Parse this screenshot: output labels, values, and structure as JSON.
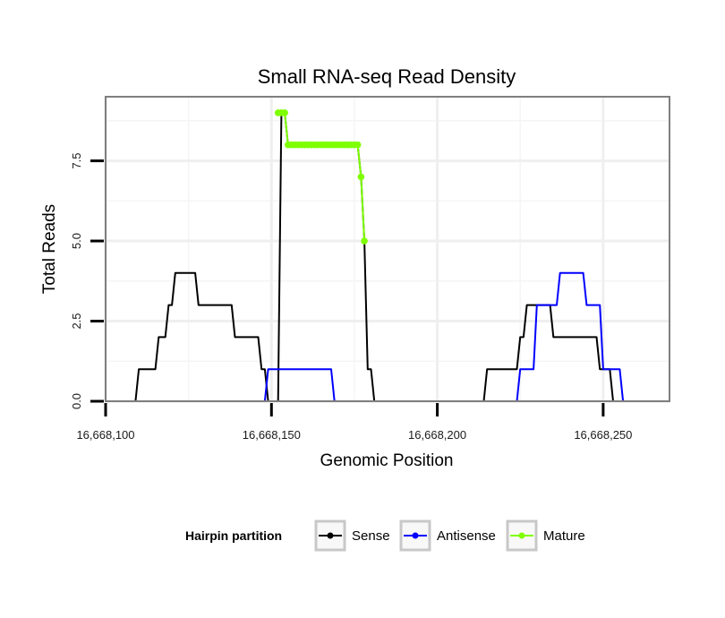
{
  "chart_data": {
    "type": "line",
    "title": "Small RNA-seq Read Density",
    "xlabel": "Genomic Position",
    "ylabel": "Total Reads",
    "xlim": [
      16668100,
      16668270
    ],
    "ylim": [
      0,
      9.5
    ],
    "x_ticks": [
      16668100,
      16668150,
      16668200,
      16668250
    ],
    "x_tick_labels": [
      "16,668,100",
      "16,668,150",
      "16,668,200",
      "16,668,250"
    ],
    "y_ticks": [
      0,
      2.5,
      5.0,
      7.5
    ],
    "y_tick_labels": [
      "0.0",
      "2.5",
      "5.0",
      "7.5"
    ],
    "grid": true,
    "legend": {
      "title": "Hairpin partition",
      "placement": "bottom",
      "entries": [
        "Sense",
        "Antisense",
        "Mature"
      ]
    },
    "series": [
      {
        "name": "Sense",
        "color": "#000000",
        "points": [
          [
            16668104,
            0
          ],
          [
            16668109,
            0
          ],
          [
            16668110,
            1
          ],
          [
            16668115,
            1
          ],
          [
            16668116,
            2
          ],
          [
            16668118,
            2
          ],
          [
            16668119,
            3
          ],
          [
            16668120,
            3
          ],
          [
            16668121,
            4
          ],
          [
            16668127,
            4
          ],
          [
            16668128,
            3
          ],
          [
            16668138,
            3
          ],
          [
            16668139,
            2
          ],
          [
            16668146,
            2
          ],
          [
            16668147,
            1
          ],
          [
            16668148,
            1
          ],
          [
            16668149,
            0
          ],
          [
            16668152,
            0
          ],
          [
            16668153,
            9
          ],
          [
            16668154,
            9
          ],
          [
            16668155,
            8
          ],
          [
            16668176,
            8
          ],
          [
            16668177,
            7
          ],
          [
            16668178,
            5
          ],
          [
            16668179,
            1
          ],
          [
            16668180,
            1
          ],
          [
            16668181,
            0
          ],
          [
            16668214,
            0
          ],
          [
            16668215,
            1
          ],
          [
            16668224,
            1
          ],
          [
            16668225,
            2
          ],
          [
            16668226,
            2
          ],
          [
            16668227,
            3
          ],
          [
            16668234,
            3
          ],
          [
            16668235,
            2
          ],
          [
            16668248,
            2
          ],
          [
            16668249,
            1
          ],
          [
            16668252,
            1
          ],
          [
            16668253,
            0
          ],
          [
            16668259,
            0
          ]
        ]
      },
      {
        "name": "Antisense",
        "color": "#0000ff",
        "points": [
          [
            16668109,
            0
          ],
          [
            16668148,
            0
          ],
          [
            16668149,
            1
          ],
          [
            16668168,
            1
          ],
          [
            16668169,
            0
          ],
          [
            16668224,
            0
          ],
          [
            16668225,
            1
          ],
          [
            16668229,
            1
          ],
          [
            16668230,
            3
          ],
          [
            16668236,
            3
          ],
          [
            16668237,
            4
          ],
          [
            16668244,
            4
          ],
          [
            16668245,
            3
          ],
          [
            16668249,
            3
          ],
          [
            16668250,
            1
          ],
          [
            16668255,
            1
          ],
          [
            16668256,
            0
          ]
        ]
      },
      {
        "name": "Mature",
        "color": "#7fff00",
        "points": [
          [
            16668152,
            9
          ],
          [
            16668153,
            9
          ],
          [
            16668154,
            9
          ],
          [
            16668155,
            8
          ],
          [
            16668156,
            8
          ],
          [
            16668157,
            8
          ],
          [
            16668158,
            8
          ],
          [
            16668159,
            8
          ],
          [
            16668160,
            8
          ],
          [
            16668161,
            8
          ],
          [
            16668162,
            8
          ],
          [
            16668163,
            8
          ],
          [
            16668164,
            8
          ],
          [
            16668165,
            8
          ],
          [
            16668166,
            8
          ],
          [
            16668167,
            8
          ],
          [
            16668168,
            8
          ],
          [
            16668169,
            8
          ],
          [
            16668170,
            8
          ],
          [
            16668171,
            8
          ],
          [
            16668172,
            8
          ],
          [
            16668173,
            8
          ],
          [
            16668174,
            8
          ],
          [
            16668175,
            8
          ],
          [
            16668176,
            8
          ],
          [
            16668177,
            7
          ],
          [
            16668178,
            5
          ]
        ]
      }
    ]
  }
}
